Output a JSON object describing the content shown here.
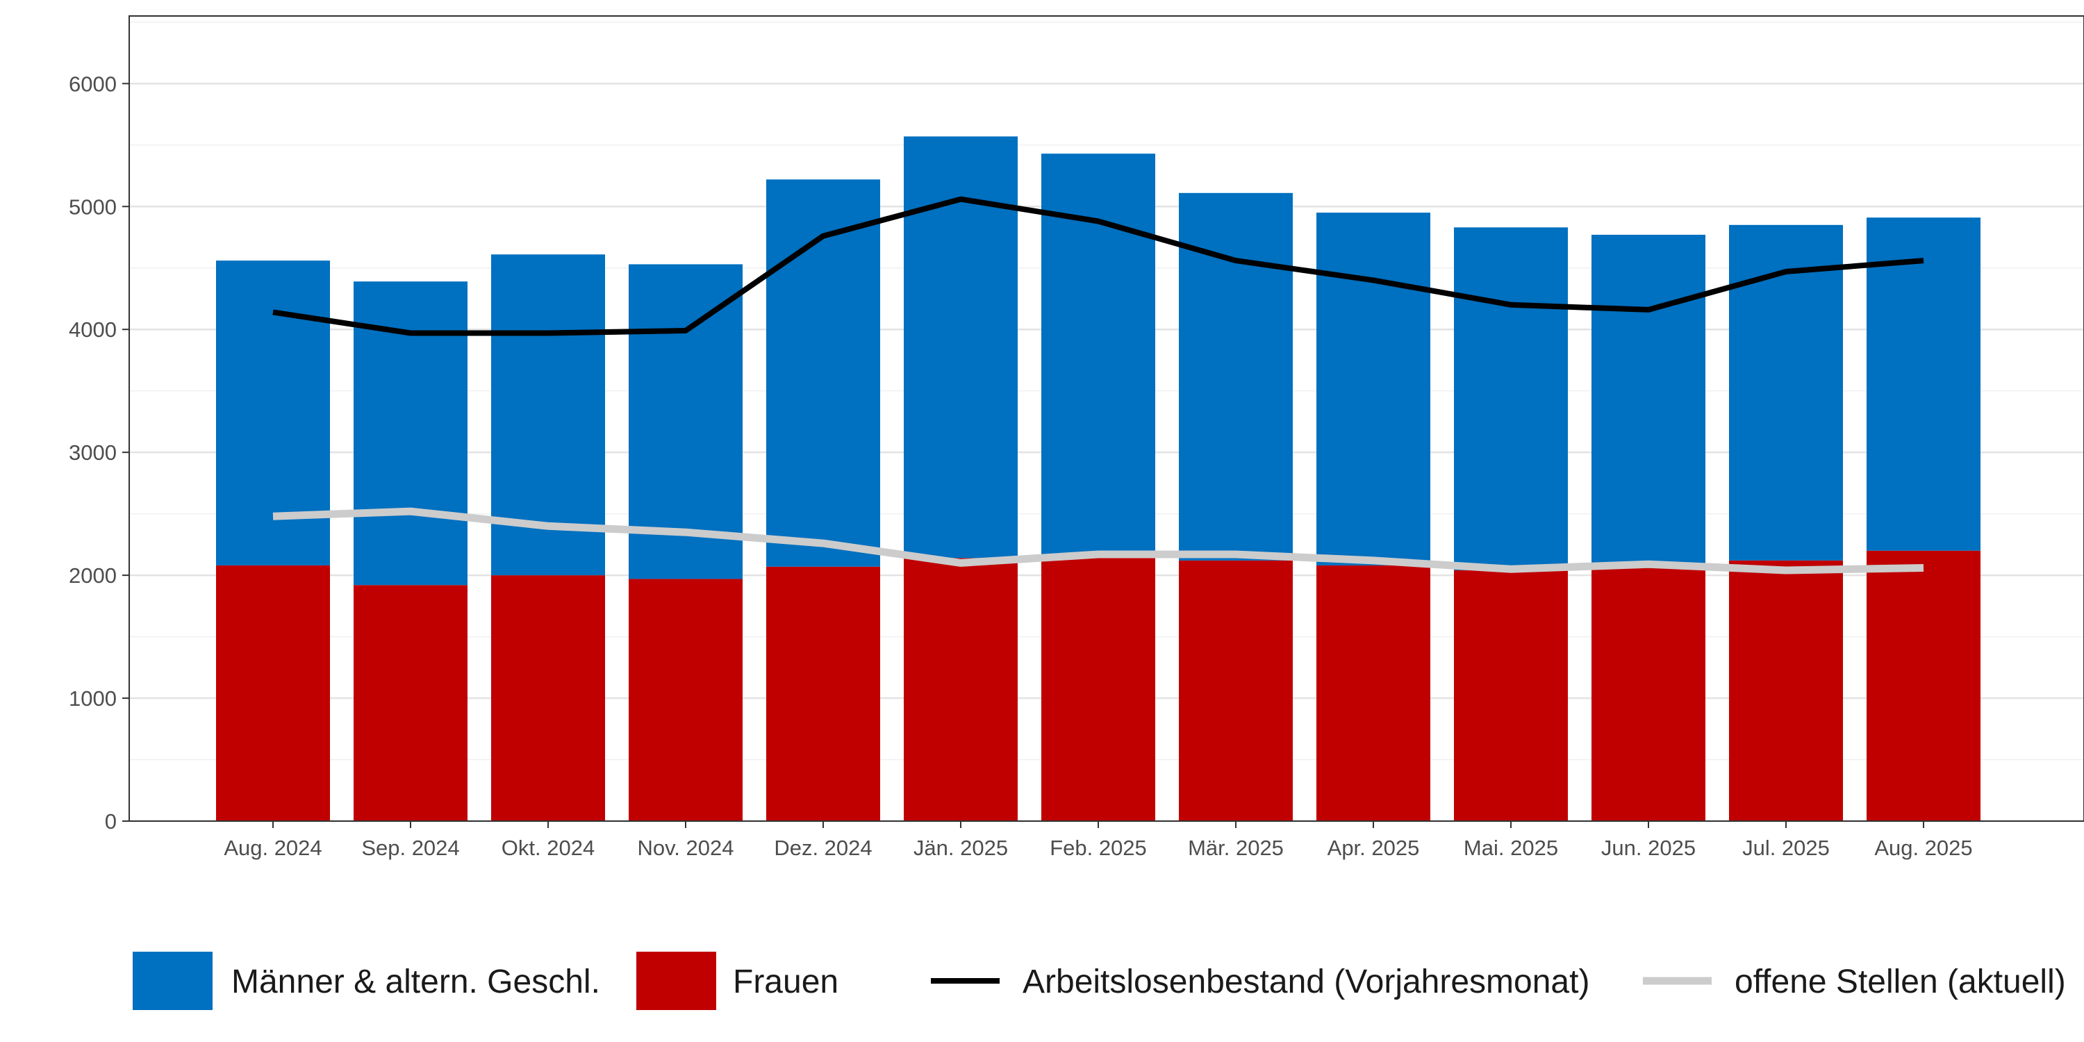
{
  "chart_data": {
    "type": "bar",
    "stacked": true,
    "categories": [
      "Aug. 2024",
      "Sep. 2024",
      "Okt. 2024",
      "Nov. 2024",
      "Dez. 2024",
      "Jän. 2025",
      "Feb. 2025",
      "Mär. 2025",
      "Apr. 2025",
      "Mai. 2025",
      "Jun. 2025",
      "Jul. 2025",
      "Aug. 2025"
    ],
    "series": [
      {
        "name": "Frauen",
        "kind": "bar",
        "color": "#c00000",
        "values": [
          2080,
          1920,
          2000,
          1970,
          2070,
          2140,
          2150,
          2120,
          2080,
          2040,
          2060,
          2120,
          2200
        ]
      },
      {
        "name": "Männer & altern. Geschl.",
        "kind": "bar",
        "color": "#0070c0",
        "values": [
          2480,
          2470,
          2610,
          2560,
          3150,
          3430,
          3280,
          2990,
          2870,
          2790,
          2710,
          2730,
          2710
        ]
      },
      {
        "name": "Arbeitslosenbestand (Vorjahresmonat)",
        "kind": "line",
        "color": "#000000",
        "values": [
          4140,
          3970,
          3970,
          3990,
          4760,
          5060,
          4880,
          4560,
          4400,
          4200,
          4160,
          4470,
          4560
        ]
      },
      {
        "name": "offene Stellen (aktuell)",
        "kind": "line",
        "color": "#cccccc",
        "values": [
          2480,
          2520,
          2400,
          2350,
          2260,
          2100,
          2170,
          2170,
          2120,
          2050,
          2090,
          2040,
          2060
        ]
      }
    ],
    "legend_order": [
      "Männer & altern. Geschl.",
      "Frauen",
      "Arbeitslosenbestand (Vorjahresmonat)",
      "offene Stellen (aktuell)"
    ],
    "yticks": [
      0,
      1000,
      2000,
      3000,
      4000,
      5000,
      6000
    ],
    "ylim": [
      0,
      6550
    ],
    "grid": true,
    "legend_position": "bottom",
    "title": "",
    "xlabel": "",
    "ylabel": ""
  }
}
